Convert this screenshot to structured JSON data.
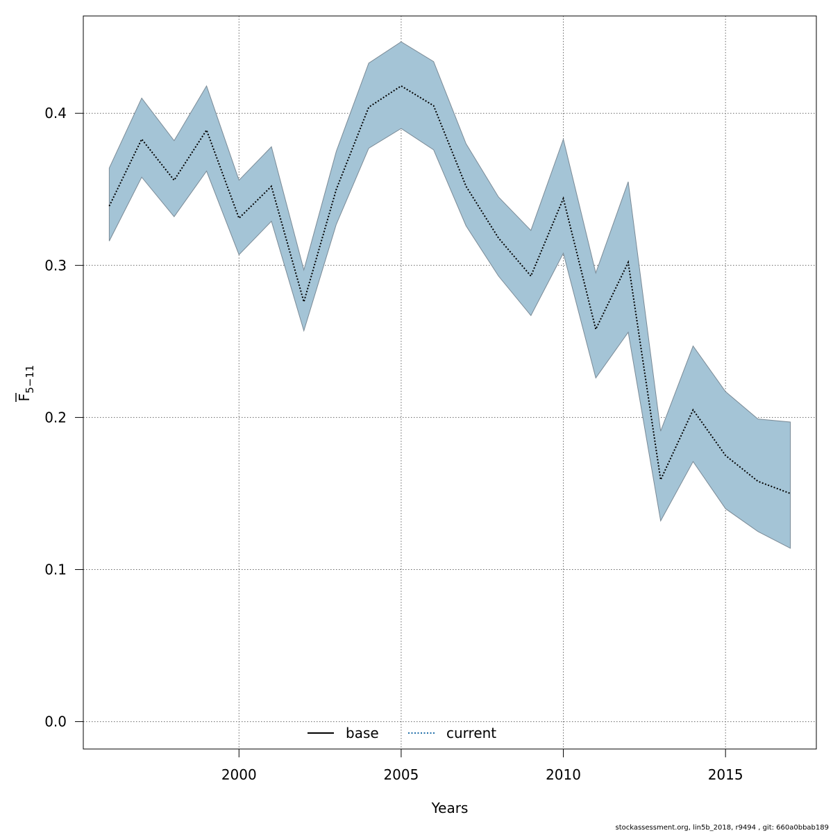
{
  "chart_data": {
    "type": "line",
    "xlabel": "Years",
    "ylabel": {
      "base": "F",
      "subscript": "5−11"
    },
    "xlim": [
      1995.2,
      2017.8
    ],
    "ylim": [
      -0.018,
      0.464
    ],
    "x_ticks": [
      2000,
      2005,
      2010,
      2015
    ],
    "x_tick_labels": [
      "2000",
      "2005",
      "2010",
      "2015"
    ],
    "y_ticks": [
      0.0,
      0.1,
      0.2,
      0.3,
      0.4
    ],
    "y_tick_labels": [
      "0.0",
      "0.1",
      "0.2",
      "0.3",
      "0.4"
    ],
    "grid": true,
    "x": [
      1996,
      1997,
      1998,
      1999,
      2000,
      2001,
      2002,
      2003,
      2004,
      2005,
      2006,
      2007,
      2008,
      2009,
      2010,
      2011,
      2012,
      2013,
      2014,
      2015,
      2016,
      2017
    ],
    "series": [
      {
        "name": "current",
        "line_style": "dotted",
        "color": "#000000",
        "values": [
          0.339,
          0.383,
          0.356,
          0.389,
          0.331,
          0.352,
          0.276,
          0.35,
          0.404,
          0.418,
          0.405,
          0.352,
          0.318,
          0.293,
          0.344,
          0.258,
          0.302,
          0.159,
          0.205,
          0.175,
          0.158,
          0.15
        ],
        "ci_lower": [
          0.316,
          0.358,
          0.332,
          0.362,
          0.307,
          0.329,
          0.257,
          0.327,
          0.377,
          0.39,
          0.376,
          0.326,
          0.293,
          0.267,
          0.308,
          0.226,
          0.256,
          0.132,
          0.171,
          0.14,
          0.125,
          0.114
        ],
        "ci_upper": [
          0.364,
          0.41,
          0.382,
          0.418,
          0.356,
          0.378,
          0.297,
          0.375,
          0.433,
          0.447,
          0.434,
          0.38,
          0.345,
          0.323,
          0.383,
          0.295,
          0.355,
          0.191,
          0.247,
          0.217,
          0.199,
          0.197
        ]
      }
    ],
    "band_color": "#a4c4d6",
    "band_edge_color": "#7a8a96",
    "legend": {
      "placement": "bottom-center",
      "entries": [
        {
          "label": "base",
          "color": "#000000",
          "style": "solid"
        },
        {
          "label": "current",
          "color": "#1f6ea8",
          "style": "dotted"
        }
      ]
    }
  },
  "footer": "stockassessment.org, lin5b_2018, r9494 , git: 660a0bbab189"
}
